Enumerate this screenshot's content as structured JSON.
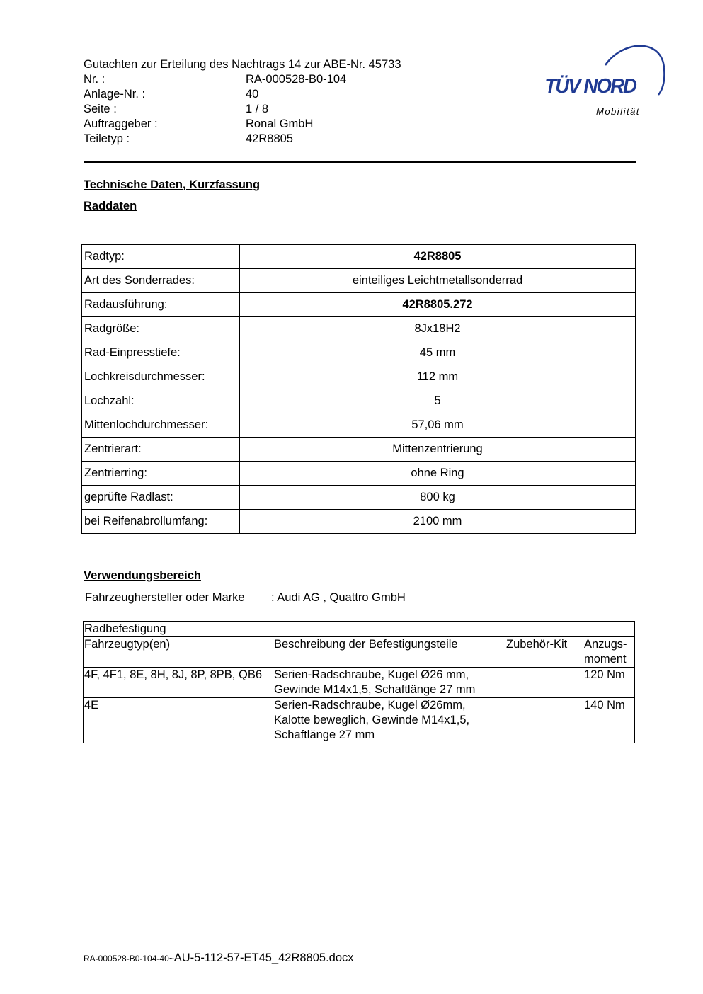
{
  "header": {
    "title": "Gutachten zur Erteilung des Nachtrags 14 zur ABE-Nr. 45733",
    "fields": [
      {
        "label": "Nr. :",
        "value": "RA-000528-B0-104"
      },
      {
        "label": "Anlage-Nr. :",
        "value": "40"
      },
      {
        "label": "Seite :",
        "value": "1 / 8"
      },
      {
        "label": "Auftraggeber :",
        "value": "Ronal GmbH"
      },
      {
        "label": "Teiletyp :",
        "value": "42R8805"
      }
    ]
  },
  "logo": {
    "brand": "TÜV NORD",
    "subtitle": "Mobilität",
    "color": "#1f3a93"
  },
  "section1": {
    "title": "Technische Daten, Kurzfassung",
    "subtitle": "Raddaten"
  },
  "raddaten": [
    {
      "label": "Radtyp:",
      "value": "42R8805",
      "bold": true
    },
    {
      "label": "Art des Sonderrades:",
      "value": "einteiliges Leichtmetallsonderrad"
    },
    {
      "label": "Radausführung:",
      "value": "42R8805.272",
      "bold": true
    },
    {
      "label": "Radgröße:",
      "value": "8Jx18H2"
    },
    {
      "label": "Rad-Einpresstiefe:",
      "value": "45 mm"
    },
    {
      "label": "Lochkreisdurchmesser:",
      "value": "112 mm"
    },
    {
      "label": "Lochzahl:",
      "value": "5"
    },
    {
      "label": "Mittenlochdurchmesser:",
      "value": "57,06 mm"
    },
    {
      "label": "Zentrierart:",
      "value": "Mittenzentrierung"
    },
    {
      "label": "Zentrierring:",
      "value": "ohne Ring"
    },
    {
      "label": "geprüfte Radlast:",
      "value": "800 kg"
    },
    {
      "label": "bei Reifenabrollumfang:",
      "value": "2100 mm"
    }
  ],
  "section2": {
    "title": "Verwendungsbereich",
    "manufacturer_label": "Fahrzeughersteller oder Marke",
    "manufacturer_value": ": Audi AG , Quattro GmbH"
  },
  "befestigung": {
    "title": "Radbefestigung",
    "headers": [
      "Fahrzeugtyp(en)",
      "Beschreibung der Befestigungsteile",
      "Zubehör-Kit",
      "Anzugs-\nmoment"
    ],
    "rows": [
      [
        "4F, 4F1, 8E, 8H, 8J, 8P, 8PB, QB6",
        "Serien-Radschraube, Kugel Ø26 mm, Gewinde M14x1,5, Schaftlänge 27 mm",
        "",
        "120 Nm"
      ],
      [
        "4E",
        "Serien-Radschraube, Kugel Ø26mm, Kalotte beweglich, Gewinde M14x1,5, Schaftlänge 27 mm",
        "",
        "140 Nm"
      ]
    ]
  },
  "footer": {
    "prefix": "RA-000528-B0-104-40~",
    "filename": "AU-5-112-57-ET45_42R8805.docx"
  }
}
